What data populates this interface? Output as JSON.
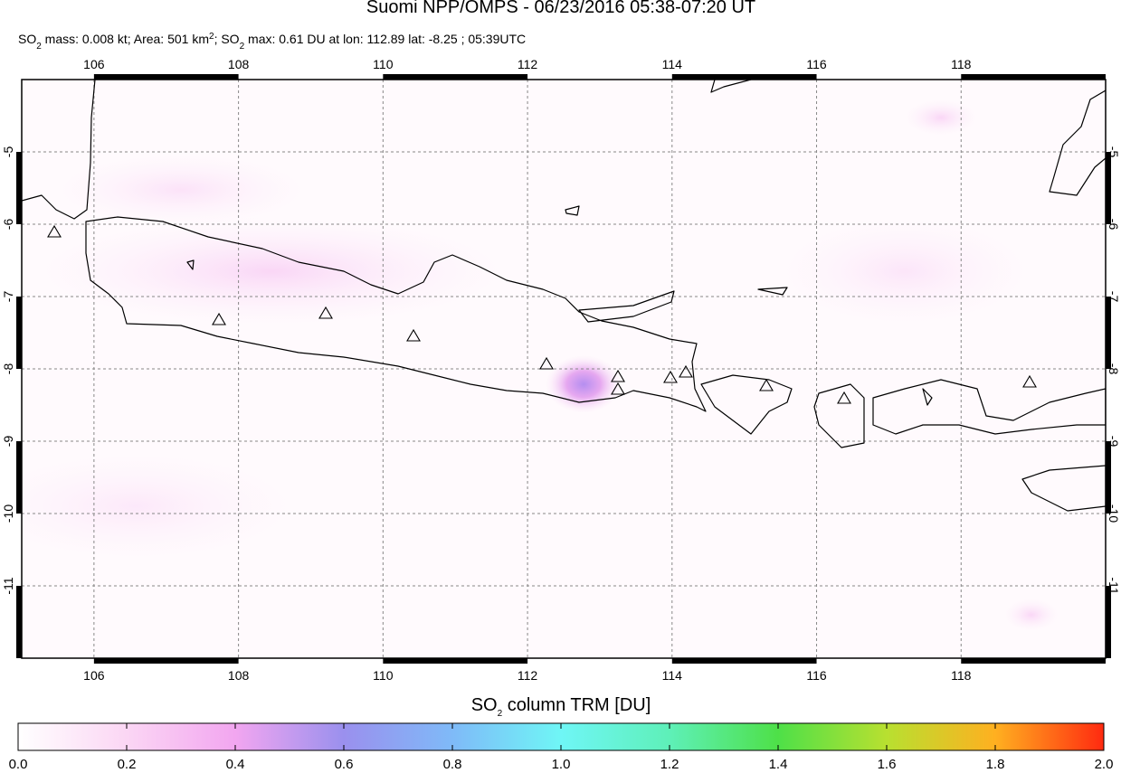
{
  "header": {
    "title": "Suomi NPP/OMPS - 06/23/2016 05:38-07:20 UT",
    "subtitle": [
      "SO",
      "2",
      " mass: 0.008 kt; Area: 501 km",
      "2",
      "; SO",
      "2",
      " max: 0.61 DU at lon: 112.89 lat: -8.25 ; 05:39UTC"
    ]
  },
  "chart_data": {
    "type": "map",
    "xlim": [
      105,
      120
    ],
    "ylim": [
      -12,
      -4
    ],
    "xticks": [
      106,
      108,
      110,
      112,
      114,
      116,
      118
    ],
    "yticks": [
      -5,
      -6,
      -7,
      -8,
      -9,
      -10,
      -11
    ],
    "grid": true
  },
  "colorbar": {
    "label": [
      "SO",
      "2",
      " column TRM [DU]"
    ],
    "lim": [
      0,
      2
    ],
    "ticks": [
      {
        "value": 0,
        "label": "0.0"
      },
      {
        "value": 0.2,
        "label": "0.2"
      },
      {
        "value": 0.4,
        "label": "0.4"
      },
      {
        "value": 0.6,
        "label": "0.6"
      },
      {
        "value": 0.8,
        "label": "0.8"
      },
      {
        "value": 1,
        "label": "1.0"
      },
      {
        "value": 1.2,
        "label": "1.2"
      },
      {
        "value": 1.4,
        "label": "1.4"
      },
      {
        "value": 1.6,
        "label": "1.6"
      },
      {
        "value": 1.8,
        "label": "1.8"
      },
      {
        "value": 2,
        "label": "2.0"
      }
    ]
  }
}
